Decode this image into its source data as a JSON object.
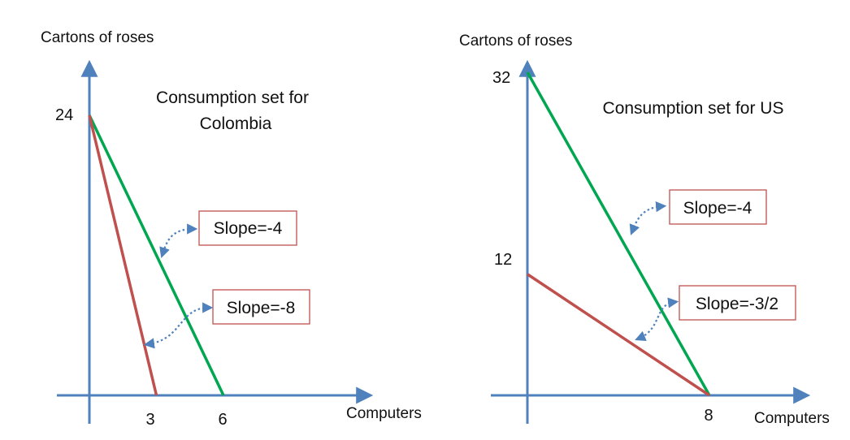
{
  "chart_data": [
    {
      "type": "line",
      "title": "Consumption set for Colombia",
      "title_lines": [
        "Consumption set for",
        "Colombia"
      ],
      "xlabel": "Computers",
      "ylabel": "Cartons of roses",
      "x_ticks": [
        3,
        6
      ],
      "y_ticks": [
        24
      ],
      "xlim": [
        0,
        8
      ],
      "ylim": [
        0,
        30
      ],
      "series": [
        {
          "color": "#00a650",
          "x": [
            0,
            6
          ],
          "y": [
            24,
            0
          ]
        },
        {
          "color": "#c0504d",
          "x": [
            0,
            3
          ],
          "y": [
            24,
            0
          ]
        }
      ],
      "annotations": [
        {
          "text": "Slope=-4"
        },
        {
          "text": "Slope=-8"
        }
      ]
    },
    {
      "type": "line",
      "title": "Consumption set for US",
      "title_lines": [
        "Consumption set for US"
      ],
      "xlabel": "Computers",
      "ylabel": "Cartons of roses",
      "x_ticks": [
        8
      ],
      "y_ticks": [
        32,
        12
      ],
      "xlim": [
        0,
        10.2
      ],
      "ylim": [
        0,
        35
      ],
      "series": [
        {
          "color": "#00a650",
          "x": [
            0,
            8
          ],
          "y": [
            32,
            0
          ]
        },
        {
          "color": "#c0504d",
          "x": [
            0,
            8
          ],
          "y": [
            12,
            0
          ]
        }
      ],
      "annotations": [
        {
          "text": "Slope=-4"
        },
        {
          "text": "Slope=-3/2"
        }
      ]
    }
  ],
  "colors": {
    "axis": "#4f81bd",
    "callout_border": "#c0504d",
    "arrow": "#4f81bd"
  }
}
